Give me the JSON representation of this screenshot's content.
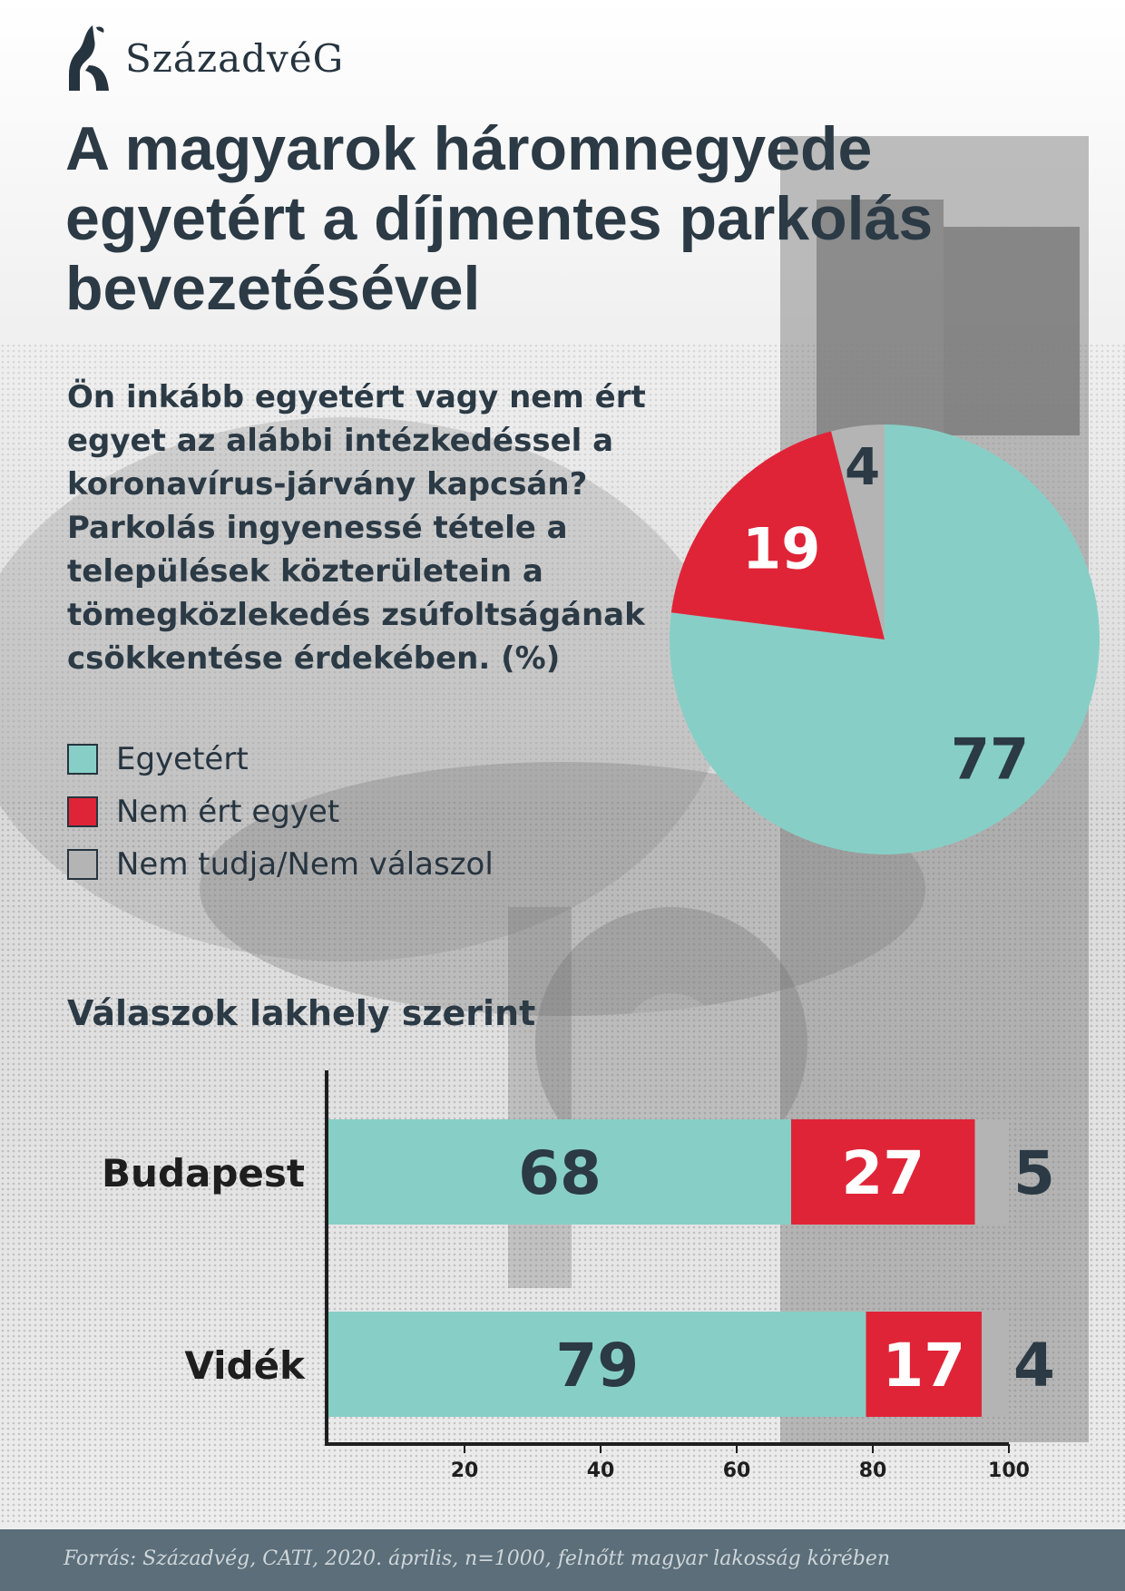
{
  "brand": {
    "logo_text": "SzázadvéG"
  },
  "title": "A magyarok háromnegyede egyetért a díjmentes parkolás bevezetésével",
  "question": "Ön inkább egyetért vagy nem ért egyet az alábbi intézkedéssel a koronavírus-járvány kapcsán? Parkolás ingyenessé tétele a települések közterületein a tömegközlekedés zsúfoltságának csökkentése érdekében. (%)",
  "legend": [
    {
      "label": "Egyetért",
      "color": "#87cfc6"
    },
    {
      "label": "Nem ért egyet",
      "color": "#e02437"
    },
    {
      "label": "Nem tudja/Nem válaszol",
      "color": "#b4b4b4"
    }
  ],
  "subtitle": "Válaszok lakhely szerint",
  "source": "Forrás: Századvég, CATI, 2020. április, n=1000, felnőtt magyar lakosság körében",
  "chart_data": [
    {
      "type": "pie",
      "categories": [
        "Egyetért",
        "Nem ért egyet",
        "Nem tudja/Nem válaszol"
      ],
      "values": [
        77,
        19,
        4
      ],
      "colors": [
        "#87cfc6",
        "#e02437",
        "#b4b4b4"
      ]
    },
    {
      "type": "bar",
      "orientation": "horizontal",
      "stacked": true,
      "categories": [
        "Budapest",
        "Vidék"
      ],
      "series": [
        {
          "name": "Egyetért",
          "values": [
            68,
            79
          ],
          "color": "#87cfc6"
        },
        {
          "name": "Nem ért egyet",
          "values": [
            27,
            17
          ],
          "color": "#e02437"
        },
        {
          "name": "Nem tudja/Nem válaszol",
          "values": [
            5,
            4
          ],
          "color": "#b4b4b4"
        }
      ],
      "xlim": [
        0,
        100
      ],
      "xticks": [
        "20",
        "40",
        "60",
        "80",
        "100"
      ],
      "title": "Válaszok lakhely szerint"
    }
  ]
}
